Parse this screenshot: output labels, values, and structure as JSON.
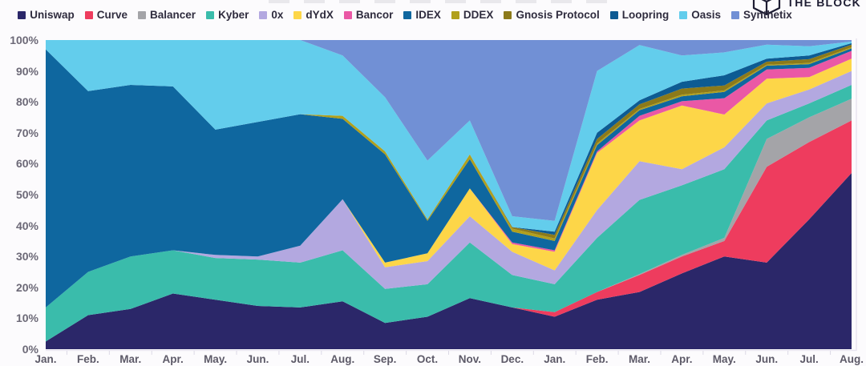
{
  "branding": {
    "logo_text": "THE BLOCK"
  },
  "axes": {
    "y_ticks": [
      "0%",
      "10%",
      "20%",
      "30%",
      "40%",
      "50%",
      "60%",
      "70%",
      "80%",
      "90%",
      "100%"
    ]
  },
  "chart_data": {
    "type": "area",
    "stacked": true,
    "normalized_percent": true,
    "legend_position": "top",
    "ylim": [
      0,
      100
    ],
    "grid": false,
    "categories": [
      "Jan.",
      "Feb.",
      "Mar.",
      "Apr.",
      "May.",
      "Jun.",
      "Jul.",
      "Aug.",
      "Sep.",
      "Oct.",
      "Nov.",
      "Dec.",
      "Jan.",
      "Feb.",
      "Mar.",
      "Apr.",
      "May.",
      "Jun.",
      "Jul.",
      "Aug."
    ],
    "series": [
      {
        "name": "Uniswap",
        "color": "#2b2769",
        "values": [
          2.5,
          11,
          13,
          18,
          16,
          14,
          13.5,
          15.5,
          8.5,
          10.5,
          16.5,
          13.5,
          10.5,
          16,
          18.5,
          24.5,
          30,
          28,
          42,
          57
        ]
      },
      {
        "name": "Curve",
        "color": "#ee3c5e",
        "values": [
          0,
          0,
          0,
          0,
          0,
          0,
          0,
          0,
          0,
          0,
          0,
          0,
          1.5,
          2.5,
          5.5,
          5.5,
          5,
          31,
          25,
          17
        ]
      },
      {
        "name": "Balancer",
        "color": "#a4a4a8",
        "values": [
          0,
          0,
          0,
          0,
          0,
          0,
          0,
          0,
          0,
          0,
          0,
          0,
          0,
          0,
          0.3,
          0.5,
          1,
          9,
          8,
          7
        ]
      },
      {
        "name": "Kyber",
        "color": "#3abcab",
        "values": [
          11,
          14,
          17,
          14,
          13.5,
          15,
          14.5,
          16.5,
          11,
          10.5,
          18,
          10.5,
          9,
          17.5,
          24,
          22.5,
          22.2,
          6,
          4.5,
          4.5
        ]
      },
      {
        "name": "0x",
        "color": "#b3a8e0",
        "values": [
          0,
          0,
          0,
          0,
          1,
          1,
          5.5,
          16.5,
          7,
          7.5,
          8.5,
          7.5,
          4.5,
          9,
          12.5,
          5.2,
          7.1,
          5.5,
          4.5,
          4.5
        ]
      },
      {
        "name": "dYdX",
        "color": "#fdd648",
        "values": [
          0,
          0,
          0,
          0,
          0,
          0,
          0,
          0,
          1.5,
          2.5,
          9,
          2.5,
          6,
          18.5,
          13.2,
          20.6,
          10.6,
          8,
          4,
          4
        ]
      },
      {
        "name": "Bancor",
        "color": "#ea58a5",
        "values": [
          0,
          0,
          0,
          0,
          0,
          0,
          0,
          0,
          0,
          0,
          0,
          0.5,
          0.5,
          0.5,
          1.5,
          1.4,
          5.3,
          3,
          3,
          2.5
        ]
      },
      {
        "name": "IDEX",
        "color": "#0f679f",
        "values": [
          83.5,
          58.5,
          55.5,
          53,
          40.5,
          43.5,
          42.5,
          26,
          35,
          10.5,
          9.5,
          3.5,
          3,
          2,
          1.8,
          1.6,
          2,
          1.2,
          1.2,
          0.8
        ]
      },
      {
        "name": "DDEX",
        "color": "#b1a01c",
        "values": [
          0,
          0,
          0,
          0,
          0,
          0,
          0,
          1,
          1,
          0.5,
          1.5,
          1,
          0.8,
          0.5,
          0.4,
          0.5,
          0.5,
          0.3,
          0.4,
          0.4
        ]
      },
      {
        "name": "Gnosis Protocol",
        "color": "#8c7a1a",
        "values": [
          0,
          0,
          0,
          0,
          0,
          0,
          0,
          0,
          0,
          0,
          0,
          0.5,
          1.2,
          1.5,
          1.5,
          2,
          1.6,
          1,
          1.2,
          0.8
        ]
      },
      {
        "name": "Loopring",
        "color": "#0d5b93",
        "values": [
          0,
          0,
          0,
          0,
          0,
          0,
          0,
          0,
          0,
          0,
          0,
          0,
          1,
          2,
          1.3,
          2.2,
          3.3,
          1,
          1.2,
          0.5
        ]
      },
      {
        "name": "Oasis",
        "color": "#63cdec",
        "values": [
          3,
          16.5,
          14.5,
          15,
          29,
          26.5,
          24,
          19.5,
          17.5,
          19,
          11,
          3.5,
          3.5,
          20,
          17.9,
          8.5,
          7.4,
          4.5,
          3,
          0.5
        ]
      },
      {
        "name": "Synthetix",
        "color": "#7190d5",
        "values": [
          0,
          0,
          0,
          0,
          0,
          0,
          0,
          5,
          18.5,
          39,
          26,
          57,
          58.5,
          10,
          1.6,
          5,
          4,
          1.5,
          2,
          0.5
        ]
      }
    ]
  }
}
